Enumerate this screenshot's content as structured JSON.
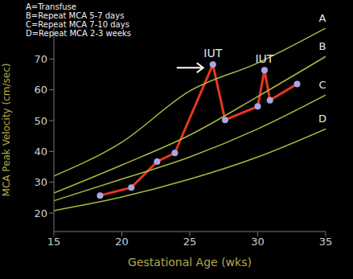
{
  "chart_data": {
    "type": "line",
    "x_label": "Gestational Age (wks)",
    "y_label": "MCA Peak Velocity (cm/sec)",
    "key": [
      "A=Transfuse",
      "B=Repeat MCA 5-7 days",
      "C=Repeat MCA 7-10 days",
      "D=Repeat MCA 2-3 weeks"
    ],
    "xlim": [
      15,
      35
    ],
    "ylim": [
      14,
      80
    ],
    "xticks": [
      15,
      20,
      25,
      30,
      35
    ],
    "yticks": [
      20,
      30,
      40,
      50,
      60,
      70
    ],
    "grid": false,
    "series": [
      {
        "color": "#e8361e",
        "marker": "circle",
        "line_style": "solid",
        "x": [
          18.4,
          20.7,
          22.6,
          23.9,
          26.7,
          27.6,
          30.0,
          30.5,
          30.9,
          32.9
        ],
        "values": [
          25.7,
          28.3,
          36.7,
          39.5,
          68.2,
          50.2,
          54.6,
          66.4,
          56.6,
          61.9
        ]
      },
      {
        "name": "A",
        "color": "#a9b93c",
        "marker": "none",
        "line_style": "solid",
        "x": [
          15,
          20,
          25,
          30,
          35
        ],
        "values": [
          32,
          43,
          59.6,
          68.7,
          80
        ]
      },
      {
        "name": "B",
        "color": "#a9b93c",
        "marker": "none",
        "line_style": "solid",
        "x": [
          15,
          20,
          25,
          30,
          35
        ],
        "values": [
          26.5,
          35.6,
          45.3,
          57.8,
          70.8
        ]
      },
      {
        "name": "C",
        "color": "#a9b93c",
        "marker": "none",
        "line_style": "solid",
        "x": [
          15,
          20,
          25,
          30,
          35
        ],
        "values": [
          24,
          31,
          38.2,
          47.3,
          58.3
        ]
      },
      {
        "name": "D",
        "color": "#a9b93c",
        "marker": "none",
        "line_style": "solid",
        "x": [
          15,
          20,
          25,
          30,
          35
        ],
        "values": [
          20.8,
          25.2,
          31,
          38.2,
          47.3
        ]
      }
    ],
    "annotations": [
      {
        "text": "IUT",
        "x": 26.7,
        "y": 68.2
      },
      {
        "text": "IUT",
        "x": 30.5,
        "y": 66.4
      }
    ]
  }
}
